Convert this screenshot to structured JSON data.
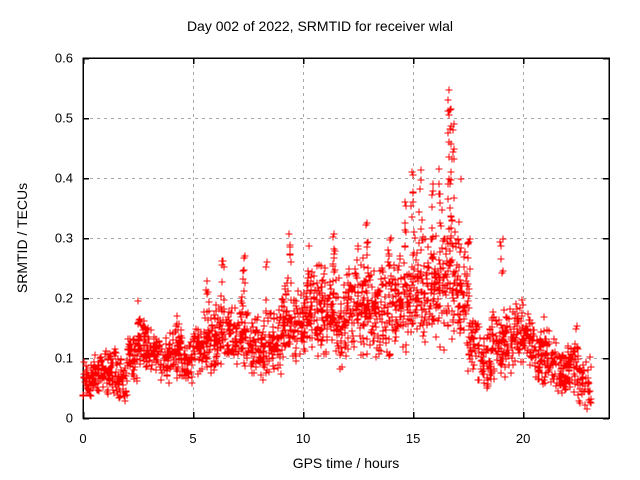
{
  "chart_data": {
    "type": "scatter",
    "title": "Day 002 of 2022, SRMTID for receiver wlal",
    "xlabel": "GPS time / hours",
    "ylabel": "SRMTID / TECUs",
    "xlim": [
      0,
      23.9
    ],
    "ylim": [
      0,
      0.6
    ],
    "xticks": [
      0,
      5,
      10,
      15,
      20
    ],
    "xtick_labels": [
      "0",
      "5",
      "10",
      "15",
      "20"
    ],
    "yticks": [
      0,
      0.1,
      0.2,
      0.3,
      0.4,
      0.5,
      0.6
    ],
    "ytick_labels": [
      "0",
      "0.1",
      "0.2",
      "0.3",
      "0.4",
      "0.5",
      "0.6"
    ],
    "grid": "dashed",
    "legend": "none",
    "marker": {
      "shape": "plus",
      "color": "#ff0000",
      "size": 7
    },
    "grid_color": "#a8a8a8",
    "axis_color": "#000000",
    "background": "#ffffff",
    "seed": 20220102,
    "point_bands": [
      [
        0.0,
        0.5,
        50,
        0.03,
        0.1
      ],
      [
        0.5,
        1.0,
        55,
        0.04,
        0.11
      ],
      [
        1.0,
        1.5,
        50,
        0.03,
        0.12
      ],
      [
        1.5,
        2.0,
        45,
        0.02,
        0.11
      ],
      [
        2.0,
        2.5,
        50,
        0.05,
        0.15
      ],
      [
        2.5,
        3.0,
        55,
        0.07,
        0.17
      ],
      [
        3.0,
        3.5,
        45,
        0.07,
        0.15
      ],
      [
        3.5,
        4.0,
        45,
        0.05,
        0.15
      ],
      [
        4.0,
        4.5,
        50,
        0.06,
        0.16
      ],
      [
        4.5,
        5.0,
        45,
        0.04,
        0.14
      ],
      [
        5.0,
        5.5,
        50,
        0.07,
        0.16
      ],
      [
        5.5,
        6.0,
        50,
        0.07,
        0.18
      ],
      [
        6.0,
        6.5,
        55,
        0.08,
        0.2
      ],
      [
        6.5,
        7.0,
        50,
        0.08,
        0.19
      ],
      [
        7.0,
        7.5,
        50,
        0.07,
        0.21
      ],
      [
        7.5,
        8.0,
        45,
        0.06,
        0.18
      ],
      [
        8.0,
        8.5,
        45,
        0.05,
        0.17
      ],
      [
        8.5,
        9.0,
        50,
        0.07,
        0.2
      ],
      [
        9.0,
        9.5,
        55,
        0.09,
        0.24
      ],
      [
        9.5,
        10.0,
        50,
        0.09,
        0.23
      ],
      [
        10.0,
        10.5,
        55,
        0.1,
        0.25
      ],
      [
        10.5,
        11.0,
        55,
        0.1,
        0.26
      ],
      [
        11.0,
        11.5,
        55,
        0.09,
        0.26
      ],
      [
        11.5,
        12.0,
        50,
        0.06,
        0.24
      ],
      [
        12.0,
        12.5,
        55,
        0.1,
        0.26
      ],
      [
        12.5,
        13.0,
        55,
        0.09,
        0.27
      ],
      [
        13.0,
        13.5,
        55,
        0.1,
        0.26
      ],
      [
        13.5,
        14.0,
        50,
        0.07,
        0.27
      ],
      [
        14.0,
        14.5,
        55,
        0.1,
        0.28
      ],
      [
        14.5,
        15.0,
        50,
        0.09,
        0.3
      ],
      [
        15.0,
        15.5,
        55,
        0.11,
        0.32
      ],
      [
        15.5,
        16.0,
        50,
        0.12,
        0.32
      ],
      [
        16.0,
        16.5,
        55,
        0.11,
        0.34
      ],
      [
        16.5,
        17.0,
        55,
        0.12,
        0.35
      ],
      [
        17.0,
        17.5,
        50,
        0.08,
        0.3
      ],
      [
        17.5,
        18.0,
        45,
        0.05,
        0.2
      ],
      [
        18.0,
        18.5,
        40,
        0.04,
        0.16
      ],
      [
        18.5,
        19.0,
        50,
        0.05,
        0.18
      ],
      [
        19.0,
        19.5,
        55,
        0.06,
        0.2
      ],
      [
        19.5,
        20.0,
        50,
        0.07,
        0.2
      ],
      [
        20.0,
        20.5,
        50,
        0.08,
        0.18
      ],
      [
        20.5,
        21.0,
        50,
        0.05,
        0.16
      ],
      [
        21.0,
        21.5,
        45,
        0.05,
        0.15
      ],
      [
        21.5,
        22.0,
        45,
        0.03,
        0.12
      ],
      [
        22.0,
        22.5,
        50,
        0.04,
        0.14
      ],
      [
        22.5,
        23.1,
        45,
        0.01,
        0.11
      ]
    ],
    "point_columns": [
      [
        2.55,
        0.13,
        0.195,
        8
      ],
      [
        4.3,
        0.12,
        0.18,
        7
      ],
      [
        5.65,
        0.16,
        0.25,
        8
      ],
      [
        6.35,
        0.17,
        0.265,
        9
      ],
      [
        7.3,
        0.18,
        0.27,
        8
      ],
      [
        8.35,
        0.16,
        0.26,
        7
      ],
      [
        9.4,
        0.22,
        0.32,
        8
      ],
      [
        10.3,
        0.22,
        0.3,
        7
      ],
      [
        11.4,
        0.24,
        0.31,
        8
      ],
      [
        12.45,
        0.22,
        0.3,
        7
      ],
      [
        12.9,
        0.24,
        0.33,
        7
      ],
      [
        13.9,
        0.25,
        0.33,
        7
      ],
      [
        14.65,
        0.28,
        0.37,
        7
      ],
      [
        14.95,
        0.3,
        0.42,
        8
      ],
      [
        15.35,
        0.28,
        0.43,
        8
      ],
      [
        15.9,
        0.28,
        0.4,
        7
      ],
      [
        16.25,
        0.3,
        0.46,
        8
      ],
      [
        16.65,
        0.28,
        0.553,
        22
      ],
      [
        16.8,
        0.3,
        0.5,
        10
      ],
      [
        17.1,
        0.25,
        0.42,
        8
      ],
      [
        17.5,
        0.18,
        0.3,
        7
      ],
      [
        19.0,
        0.22,
        0.3,
        6
      ],
      [
        21.0,
        0.12,
        0.17,
        5
      ],
      [
        22.4,
        0.1,
        0.16,
        5
      ]
    ]
  }
}
